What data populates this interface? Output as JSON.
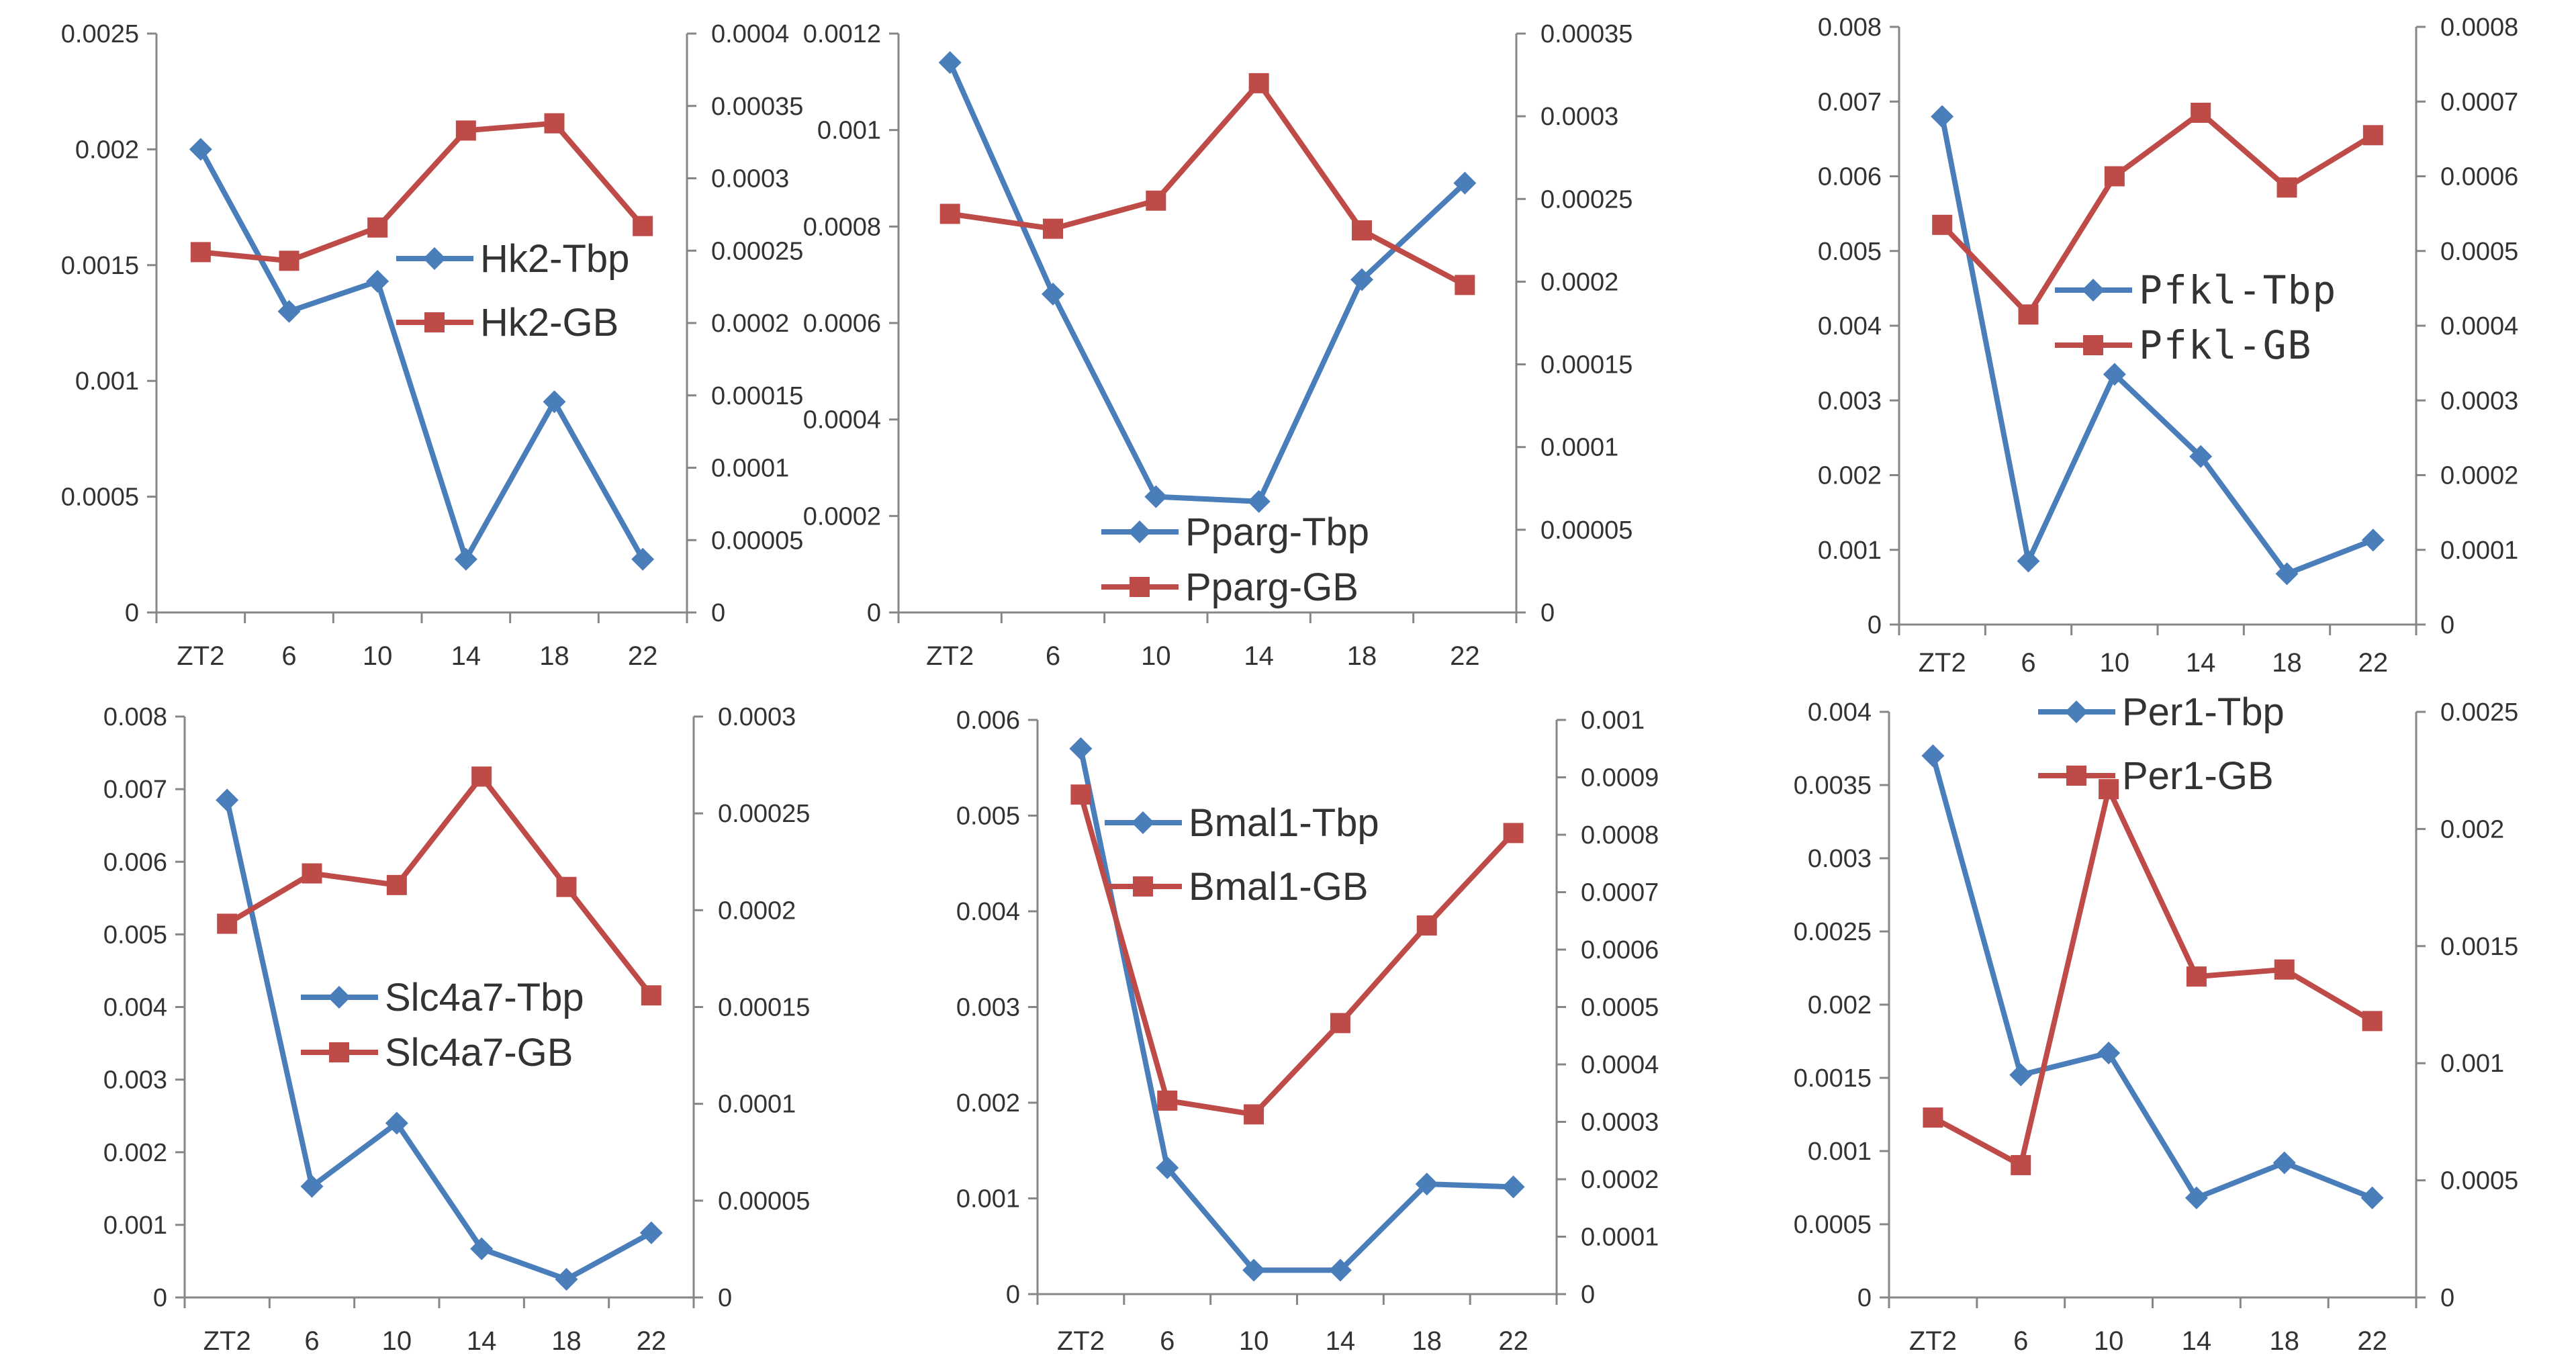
{
  "figure": {
    "layout": "3 columns x 2 rows of dual-axis line charts"
  },
  "colors": {
    "tbp": "#4A7EBB",
    "gb": "#BE4B48",
    "axis": "#868686"
  },
  "chart_data": [
    {
      "type": "line",
      "title": "",
      "categories": [
        "ZT2",
        "6",
        "10",
        "14",
        "18",
        "22"
      ],
      "y_left": {
        "min": 0,
        "max": 0.0025,
        "ticks": [
          "0",
          "0.0005",
          "0.001",
          "0.0015",
          "0.002",
          "0.0025"
        ]
      },
      "y_right": {
        "min": 0,
        "max": 0.0004,
        "ticks": [
          "0",
          "0.00005",
          "0.0001",
          "0.00015",
          "0.0002",
          "0.00025",
          "0.0003",
          "0.00035",
          "0.0004"
        ]
      },
      "series": [
        {
          "name": "Hk2-Tbp",
          "axis": "left",
          "marker": "diamond",
          "values": [
            0.002,
            0.0013,
            0.00143,
            0.00023,
            0.00091,
            0.00023
          ]
        },
        {
          "name": "Hk2-GB",
          "axis": "right",
          "marker": "square",
          "values": [
            0.000249,
            0.000243,
            0.000266,
            0.000333,
            0.000338,
            0.000267
          ]
        }
      ],
      "legend": "middle-right"
    },
    {
      "type": "line",
      "title": "",
      "categories": [
        "ZT2",
        "6",
        "10",
        "14",
        "18",
        "22"
      ],
      "y_left": {
        "min": 0,
        "max": 0.0012,
        "ticks": [
          "0",
          "0.0002",
          "0.0004",
          "0.0006",
          "0.0008",
          "0.001",
          "0.0012"
        ]
      },
      "y_right": {
        "min": 0,
        "max": 0.00035,
        "ticks": [
          "0",
          "0.00005",
          "0.0001",
          "0.00015",
          "0.0002",
          "0.00025",
          "0.0003",
          "0.00035"
        ]
      },
      "series": [
        {
          "name": "Pparg-Tbp",
          "axis": "left",
          "marker": "diamond",
          "values": [
            0.00114,
            0.00066,
            0.00024,
            0.00023,
            0.00069,
            0.00089
          ]
        },
        {
          "name": "Pparg-GB",
          "axis": "right",
          "marker": "square",
          "values": [
            0.000241,
            0.000232,
            0.000249,
            0.00032,
            0.000231,
            0.000198
          ]
        }
      ],
      "legend": "bottom-center"
    },
    {
      "type": "line",
      "title": "",
      "categories": [
        "ZT2",
        "6",
        "10",
        "14",
        "18",
        "22"
      ],
      "y_left": {
        "min": 0,
        "max": 0.008,
        "ticks": [
          "0",
          "0.001",
          "0.002",
          "0.003",
          "0.004",
          "0.005",
          "0.006",
          "0.007",
          "0.008"
        ]
      },
      "y_right": {
        "min": 0,
        "max": 0.0008,
        "ticks": [
          "0",
          "0.0001",
          "0.0002",
          "0.0003",
          "0.0004",
          "0.0005",
          "0.0006",
          "0.0007",
          "0.0008"
        ]
      },
      "series": [
        {
          "name": "Pfkl-Tbp",
          "axis": "left",
          "marker": "diamond",
          "values": [
            0.0068,
            0.00085,
            0.00335,
            0.00225,
            0.00068,
            0.00113
          ]
        },
        {
          "name": "Pfkl-GB",
          "axis": "right",
          "marker": "square",
          "values": [
            0.000535,
            0.000415,
            0.0006,
            0.000685,
            0.000585,
            0.000655
          ]
        }
      ],
      "legend": "middle-right"
    },
    {
      "type": "line",
      "title": "",
      "categories": [
        "ZT2",
        "6",
        "10",
        "14",
        "18",
        "22"
      ],
      "y_left": {
        "min": 0,
        "max": 0.008,
        "ticks": [
          "0",
          "0.001",
          "0.002",
          "0.003",
          "0.004",
          "0.005",
          "0.006",
          "0.007",
          "0.008"
        ]
      },
      "y_right": {
        "min": 0,
        "max": 0.0003,
        "ticks": [
          "0",
          "0.00005",
          "0.0001",
          "0.00015",
          "0.0002",
          "0.00025",
          "0.0003"
        ]
      },
      "series": [
        {
          "name": "Slc4a7-Tbp",
          "axis": "left",
          "marker": "diamond",
          "values": [
            0.00685,
            0.00153,
            0.0024,
            0.00067,
            0.00025,
            0.00089
          ]
        },
        {
          "name": "Slc4a7-GB",
          "axis": "right",
          "marker": "square",
          "values": [
            0.000193,
            0.000219,
            0.000213,
            0.000269,
            0.000212,
            0.000156
          ]
        }
      ],
      "legend": "middle-center"
    },
    {
      "type": "line",
      "title": "",
      "categories": [
        "ZT2",
        "6",
        "10",
        "14",
        "18",
        "22"
      ],
      "y_left": {
        "min": 0,
        "max": 0.006,
        "ticks": [
          "0",
          "0.001",
          "0.002",
          "0.003",
          "0.004",
          "0.005",
          "0.006"
        ]
      },
      "y_right": {
        "min": 0,
        "max": 0.001,
        "ticks": [
          "0",
          "0.0001",
          "0.0002",
          "0.0003",
          "0.0004",
          "0.0005",
          "0.0006",
          "0.0007",
          "0.0008",
          "0.0009",
          "0.001"
        ]
      },
      "series": [
        {
          "name": "Bmal1-Tbp",
          "axis": "left",
          "marker": "diamond",
          "values": [
            0.0057,
            0.00132,
            0.00025,
            0.00025,
            0.00115,
            0.00112
          ]
        },
        {
          "name": "Bmal1-GB",
          "axis": "right",
          "marker": "square",
          "values": [
            0.00087,
            0.000337,
            0.000313,
            0.000472,
            0.000642,
            0.000803
          ]
        }
      ],
      "legend": "top-center"
    },
    {
      "type": "line",
      "title": "",
      "categories": [
        "ZT2",
        "6",
        "10",
        "14",
        "18",
        "22"
      ],
      "y_left": {
        "min": 0,
        "max": 0.004,
        "ticks": [
          "0",
          "0.0005",
          "0.001",
          "0.0015",
          "0.002",
          "0.0025",
          "0.003",
          "0.0035",
          "0.004"
        ]
      },
      "y_right": {
        "min": 0,
        "max": 0.0025,
        "ticks": [
          "0",
          "0.0005",
          "0.001",
          "0.0015",
          "0.002",
          "0.0025"
        ]
      },
      "series": [
        {
          "name": "Per1-Tbp",
          "axis": "left",
          "marker": "diamond",
          "values": [
            0.0037,
            0.00152,
            0.00167,
            0.00068,
            0.00092,
            0.00068
          ]
        },
        {
          "name": "Per1-GB",
          "axis": "right",
          "marker": "square",
          "values": [
            0.000768,
            0.000565,
            0.00217,
            0.00137,
            0.0014,
            0.00118
          ]
        }
      ],
      "legend": "top-center"
    }
  ]
}
